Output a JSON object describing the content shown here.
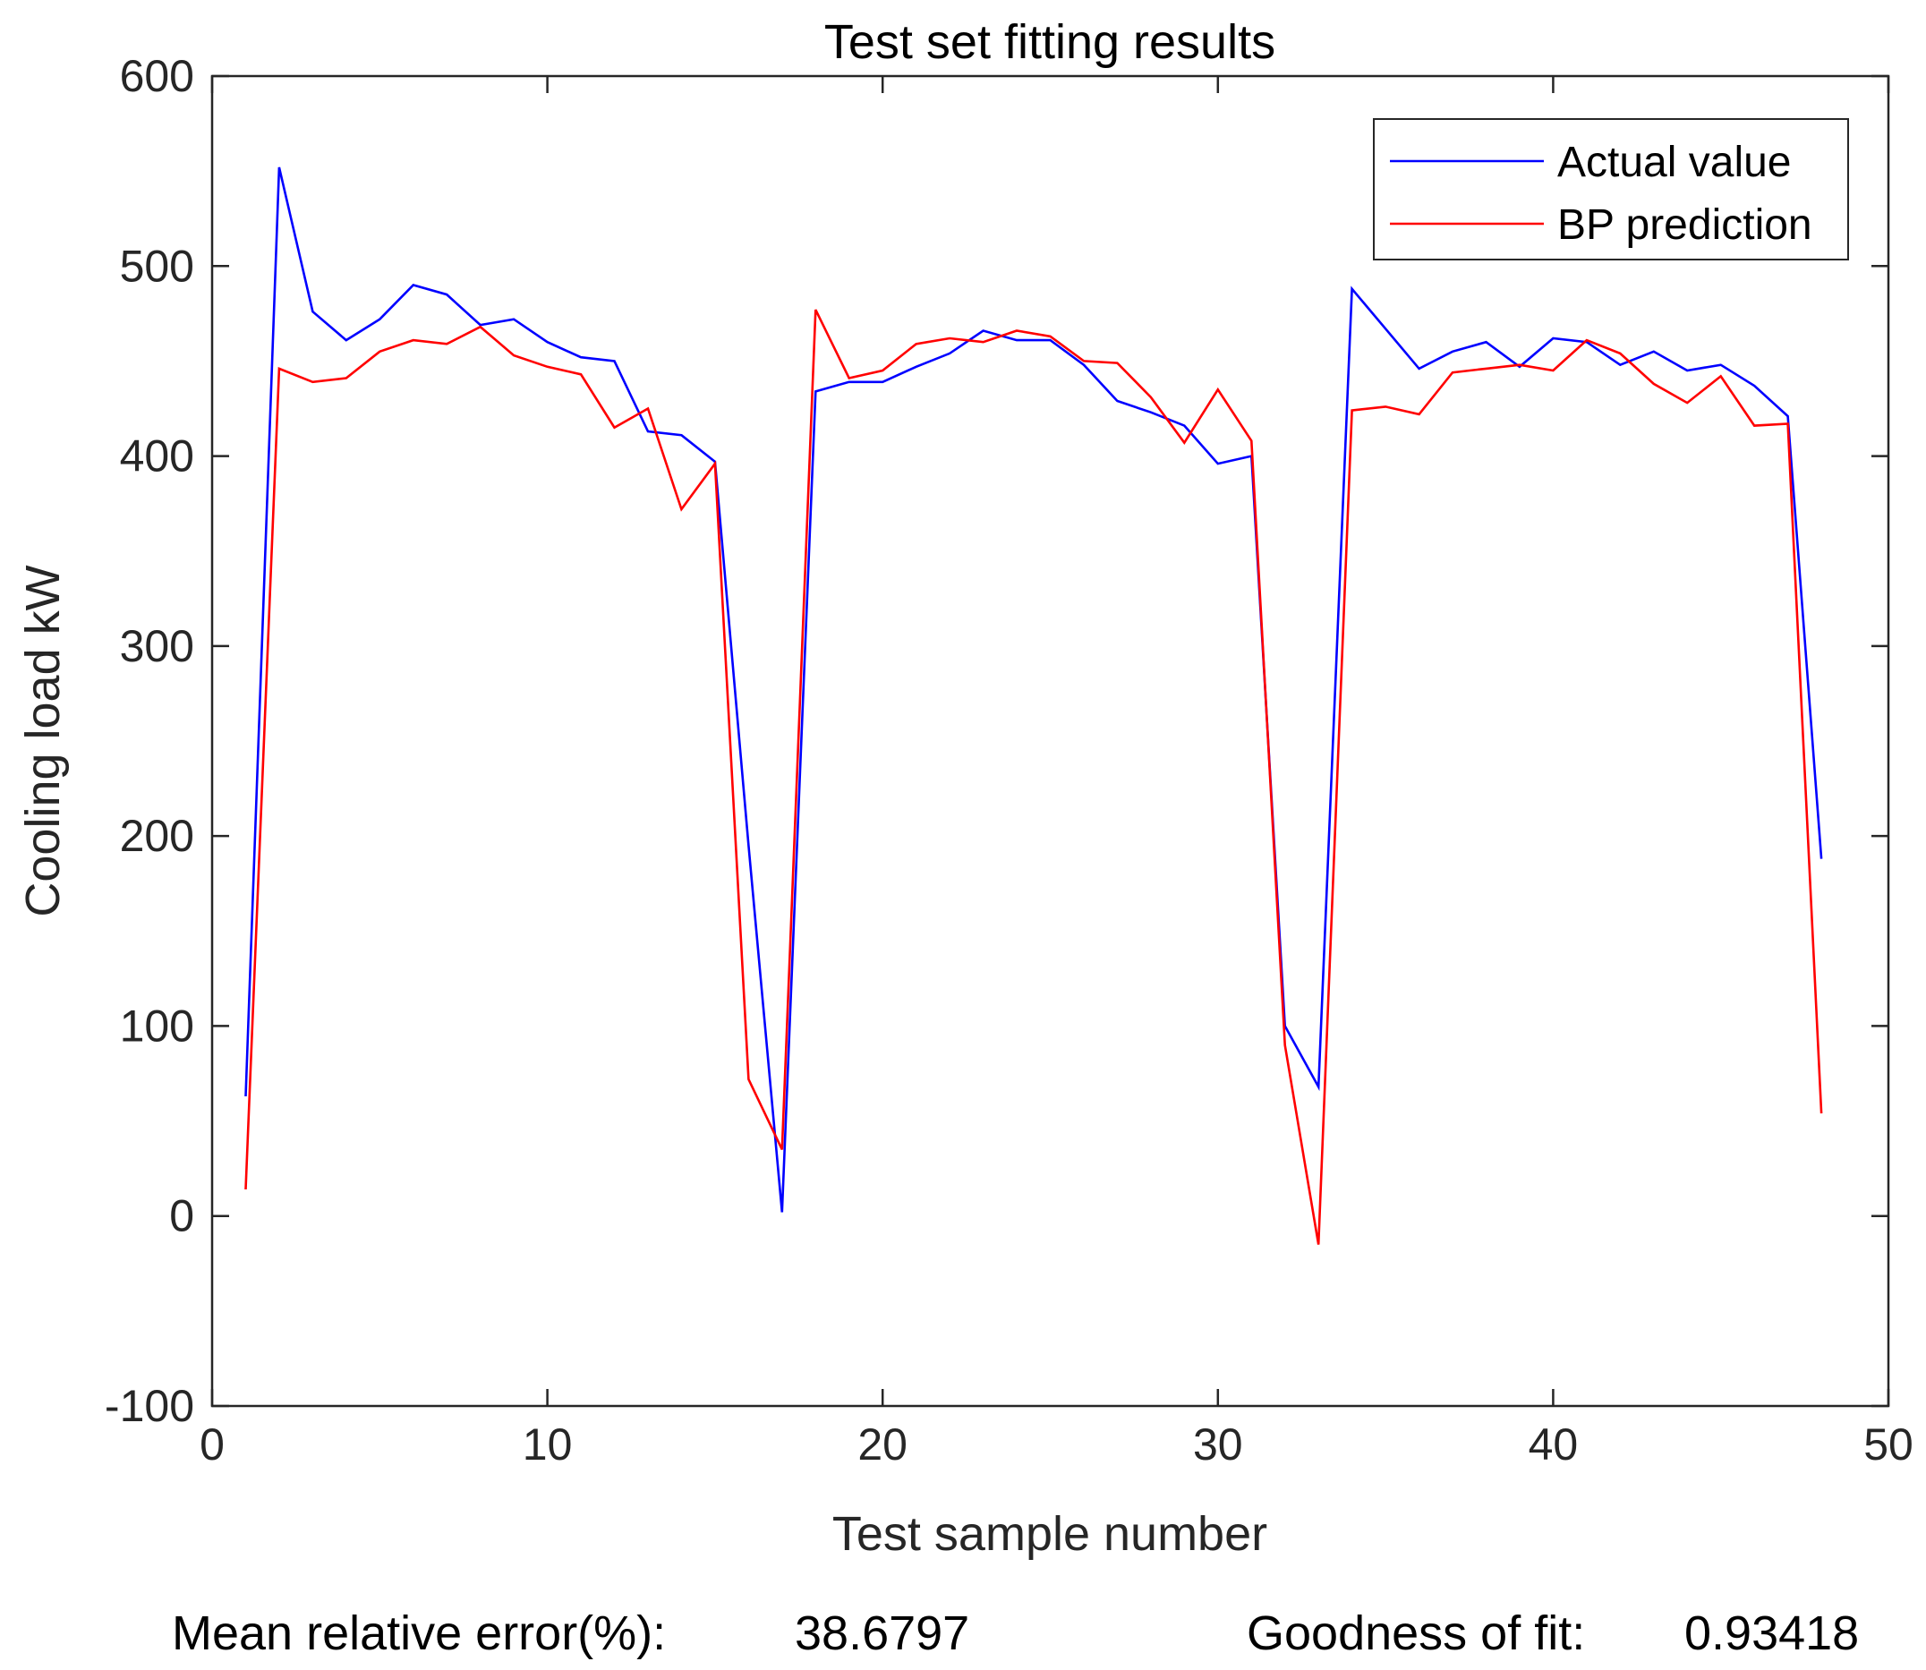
{
  "chart_data": {
    "type": "line",
    "title": "Test set fitting results",
    "xlabel": "Test sample number",
    "ylabel": "Cooling load kW",
    "xlim": [
      0,
      50
    ],
    "ylim": [
      -100,
      600
    ],
    "xticks": [
      0,
      10,
      20,
      30,
      40,
      50
    ],
    "yticks": [
      -100,
      0,
      100,
      200,
      300,
      400,
      500,
      600
    ],
    "grid": false,
    "legend_position": "top-right",
    "x": [
      1,
      2,
      3,
      4,
      5,
      6,
      7,
      8,
      9,
      10,
      11,
      12,
      13,
      14,
      15,
      16,
      17,
      18,
      19,
      20,
      21,
      22,
      23,
      24,
      25,
      26,
      27,
      28,
      29,
      30,
      31,
      32,
      33,
      34,
      35,
      36,
      37,
      38,
      39,
      40,
      41,
      42,
      43,
      44,
      45,
      46,
      47,
      48
    ],
    "series": [
      {
        "name": "Actual value",
        "color": "#0000ff",
        "values": [
          63,
          552,
          476,
          461,
          472,
          490,
          485,
          469,
          472,
          460,
          452,
          450,
          413,
          411,
          397,
          195,
          2,
          434,
          439,
          439,
          447,
          454,
          466,
          461,
          461,
          448,
          429,
          423,
          416,
          396,
          400,
          100,
          68,
          488,
          467,
          446,
          455,
          460,
          447,
          462,
          460,
          448,
          455,
          445,
          448,
          437,
          421,
          188
        ]
      },
      {
        "name": "BP prediction",
        "color": "#ff0000",
        "values": [
          14,
          446,
          439,
          441,
          455,
          461,
          459,
          468,
          453,
          447,
          443,
          415,
          425,
          372,
          396,
          72,
          35,
          477,
          441,
          445,
          459,
          462,
          460,
          466,
          463,
          450,
          449,
          431,
          407,
          435,
          408,
          90,
          -15,
          424,
          426,
          422,
          444,
          446,
          448,
          445,
          461,
          454,
          438,
          428,
          442,
          416,
          417,
          54
        ]
      }
    ],
    "footer": {
      "mre_label": "Mean relative error(%):",
      "mre_value": "38.6797",
      "gof_label": "Goodness of fit:",
      "gof_value": "0.93418"
    }
  }
}
